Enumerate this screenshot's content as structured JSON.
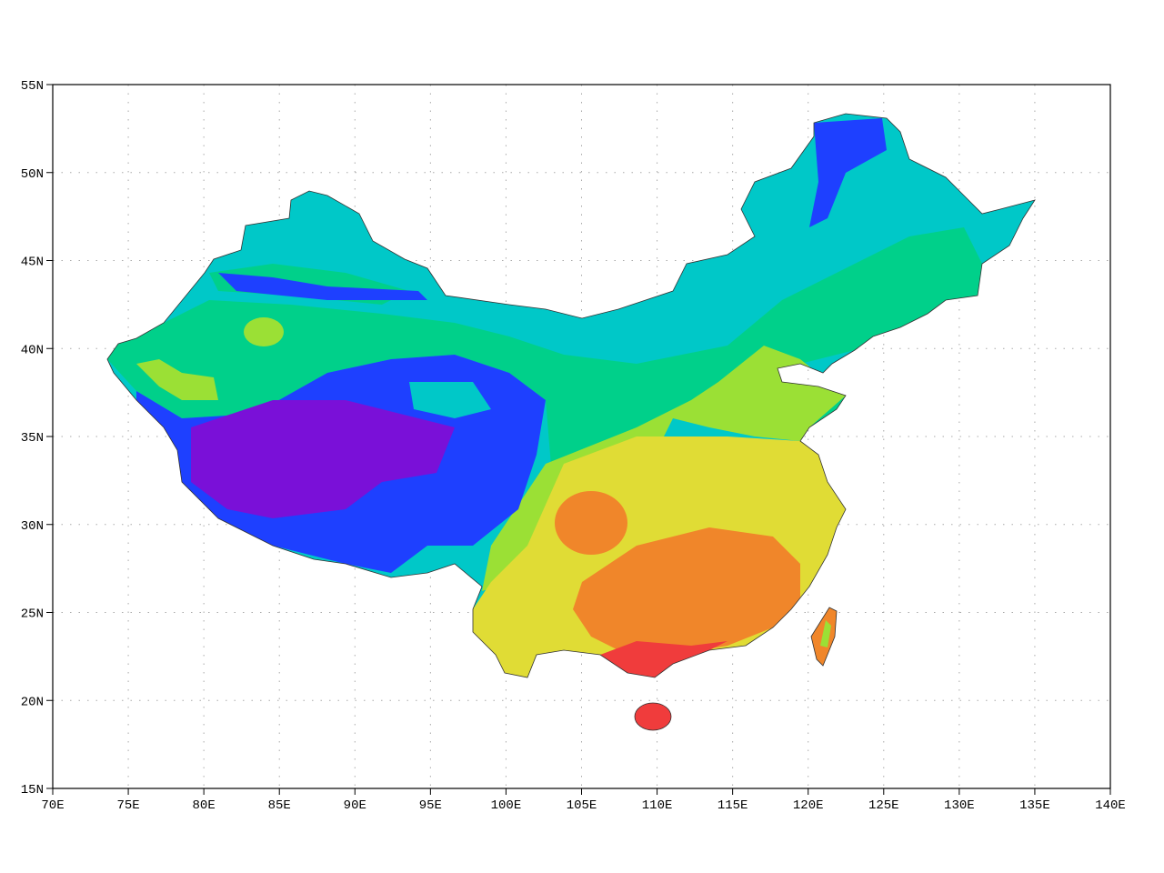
{
  "map": {
    "xlim": [
      70,
      140
    ],
    "ylim": [
      15,
      55
    ],
    "xticks": [
      {
        "value": 70,
        "label": "70E"
      },
      {
        "value": 75,
        "label": "75E"
      },
      {
        "value": 80,
        "label": "80E"
      },
      {
        "value": 85,
        "label": "85E"
      },
      {
        "value": 90,
        "label": "90E"
      },
      {
        "value": 95,
        "label": "95E"
      },
      {
        "value": 100,
        "label": "100E"
      },
      {
        "value": 105,
        "label": "105E"
      },
      {
        "value": 110,
        "label": "110E"
      },
      {
        "value": 115,
        "label": "115E"
      },
      {
        "value": 120,
        "label": "120E"
      },
      {
        "value": 125,
        "label": "125E"
      },
      {
        "value": 130,
        "label": "130E"
      },
      {
        "value": 135,
        "label": "135E"
      },
      {
        "value": 140,
        "label": "140E"
      }
    ],
    "yticks": [
      {
        "value": 15,
        "label": "15N"
      },
      {
        "value": 20,
        "label": "20N"
      },
      {
        "value": 25,
        "label": "25N"
      },
      {
        "value": 30,
        "label": "30N"
      },
      {
        "value": 35,
        "label": "35N"
      },
      {
        "value": 40,
        "label": "40N"
      },
      {
        "value": 45,
        "label": "45N"
      },
      {
        "value": 50,
        "label": "50N"
      },
      {
        "value": 55,
        "label": "55N"
      }
    ],
    "grid": true
  }
}
